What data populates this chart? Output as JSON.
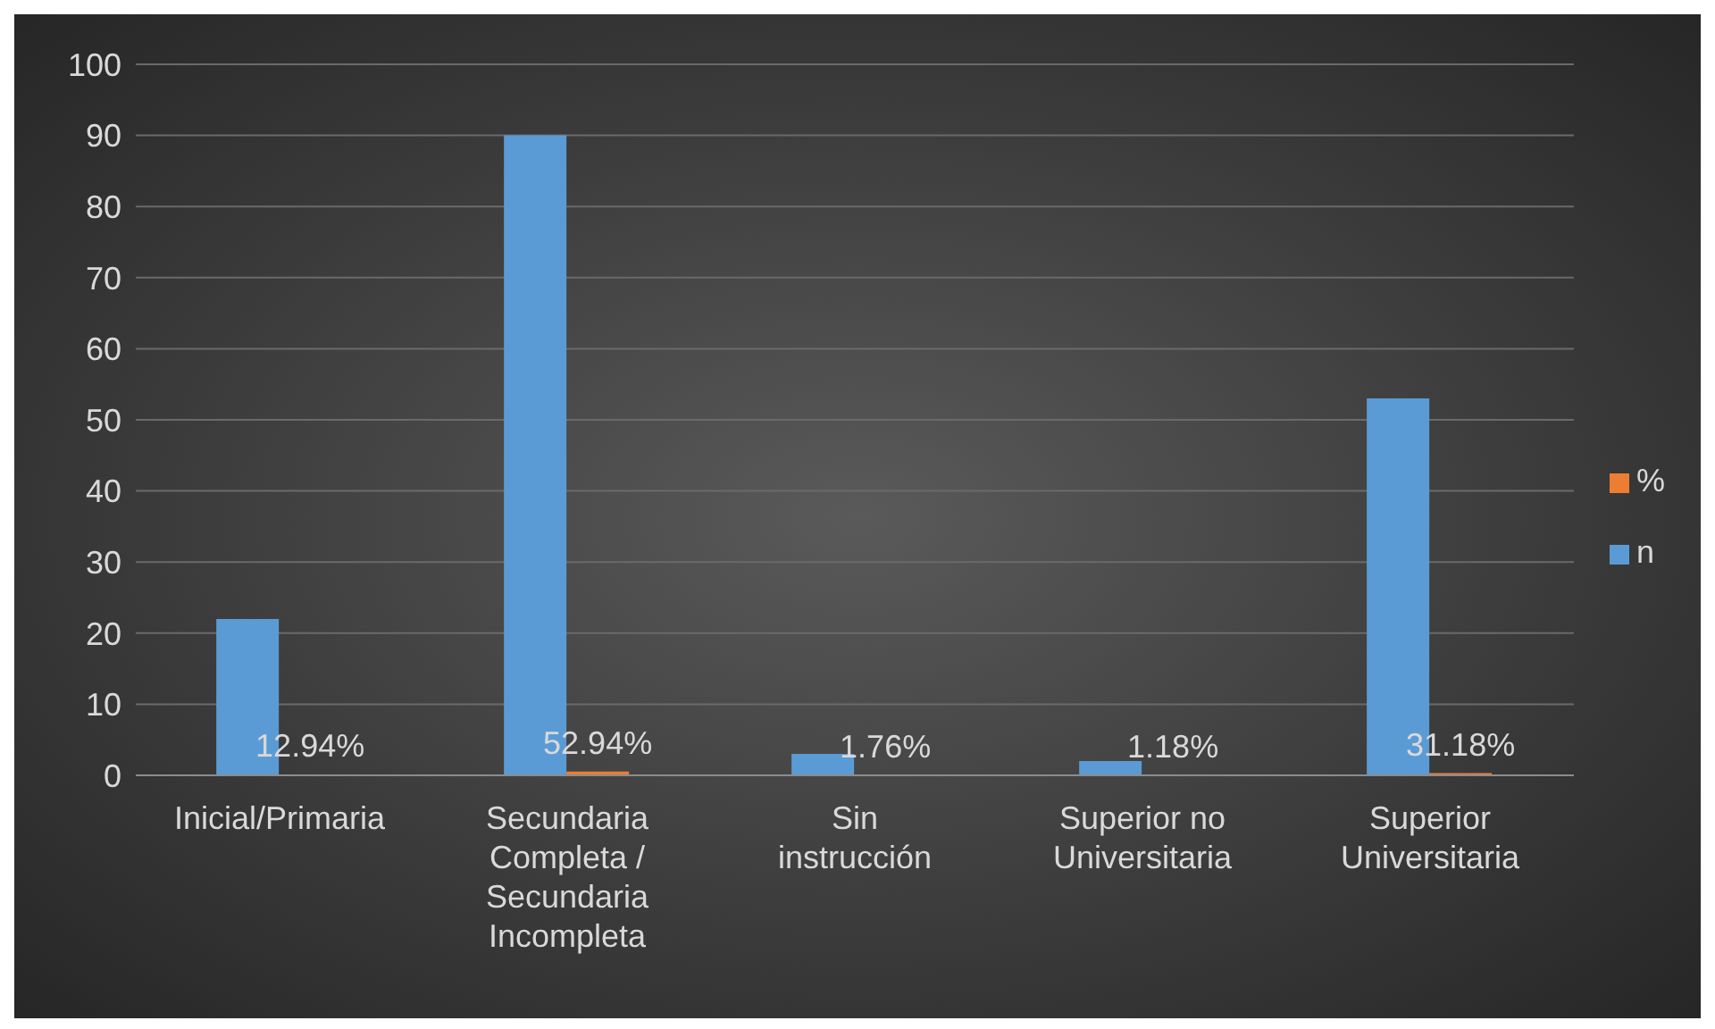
{
  "chart_data": {
    "type": "bar",
    "categories": [
      "Inicial/Primaria",
      "Secundaria Completa / Secundaria Incompleta",
      "Sin instrucción",
      "Superior no Universitaria",
      "Superior Universitaria"
    ],
    "series": [
      {
        "name": "n",
        "color": "#5b9bd5",
        "values": [
          22,
          90,
          3,
          2,
          53
        ]
      },
      {
        "name": "%",
        "color": "#ed7d31",
        "values": [
          0.1294,
          0.5294,
          0.0176,
          0.0118,
          0.3118
        ],
        "value_labels": [
          "12.94%",
          "52.94%",
          "1.76%",
          "1.18%",
          "31.18%"
        ]
      }
    ],
    "ylim": [
      0,
      100
    ],
    "yticks": [
      0,
      10,
      20,
      30,
      40,
      50,
      60,
      70,
      80,
      90,
      100
    ],
    "grid": "y",
    "legend": "right"
  }
}
